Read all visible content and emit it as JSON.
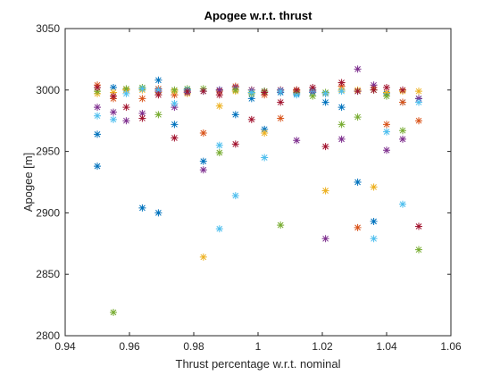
{
  "chart_data": {
    "type": "scatter",
    "title": "Apogee w.r.t. thrust",
    "xlabel": "Thrust percentage w.r.t. nominal",
    "ylabel": "Apogee [m]",
    "xlim": [
      0.94,
      1.06
    ],
    "ylim": [
      2800,
      3050
    ],
    "xticks": [
      "0.94",
      "0.96",
      "0.98",
      "1",
      "1.02",
      "1.04",
      "1.06"
    ],
    "yticks": [
      "2800",
      "2850",
      "2900",
      "2950",
      "3000",
      "3050"
    ],
    "grid": false,
    "box": true,
    "marker": "asterisk",
    "series": [
      {
        "color": "#0072BD",
        "points": [
          [
            0.95,
            2964
          ],
          [
            0.95,
            2938
          ],
          [
            0.955,
            3002
          ],
          [
            0.964,
            2904
          ],
          [
            0.969,
            3008
          ],
          [
            0.969,
            2900
          ],
          [
            0.974,
            2972
          ],
          [
            0.978,
            3000
          ],
          [
            0.983,
            2942
          ],
          [
            0.988,
            3000
          ],
          [
            0.993,
            2980
          ],
          [
            0.998,
            2993
          ],
          [
            1.002,
            2968
          ],
          [
            1.007,
            2998
          ],
          [
            1.012,
            2997
          ],
          [
            1.017,
            2998
          ],
          [
            1.021,
            2990
          ],
          [
            1.026,
            2986
          ],
          [
            1.031,
            2925
          ],
          [
            1.036,
            2893
          ],
          [
            1.04,
            2997
          ],
          [
            1.045,
            2990
          ],
          [
            1.05,
            2993
          ]
        ]
      },
      {
        "color": "#D95319",
        "points": [
          [
            0.95,
            3004
          ],
          [
            0.955,
            2993
          ],
          [
            0.959,
            3000
          ],
          [
            0.964,
            2993
          ],
          [
            0.969,
            3001
          ],
          [
            0.974,
            2996
          ],
          [
            0.978,
            2998
          ],
          [
            0.983,
            2965
          ],
          [
            0.988,
            2999
          ],
          [
            0.993,
            3003
          ],
          [
            0.998,
            2998
          ],
          [
            1.002,
            2996
          ],
          [
            1.007,
            2977
          ],
          [
            1.012,
            2999
          ],
          [
            1.017,
            3000
          ],
          [
            1.021,
            2997
          ],
          [
            1.026,
            3003
          ],
          [
            1.031,
            2888
          ],
          [
            1.036,
            3002
          ],
          [
            1.04,
            2972
          ],
          [
            1.045,
            2990
          ],
          [
            1.05,
            2975
          ]
        ]
      },
      {
        "color": "#EDB120",
        "points": [
          [
            0.95,
            2997
          ],
          [
            0.955,
            2998
          ],
          [
            0.959,
            3000
          ],
          [
            0.964,
            3000
          ],
          [
            0.969,
            2998
          ],
          [
            0.974,
            2999
          ],
          [
            0.978,
            2997
          ],
          [
            0.983,
            2864
          ],
          [
            0.988,
            2987
          ],
          [
            0.993,
            2999
          ],
          [
            0.998,
            3000
          ],
          [
            1.002,
            2965
          ],
          [
            1.007,
            3000
          ],
          [
            1.012,
            3000
          ],
          [
            1.017,
            3000
          ],
          [
            1.021,
            2918
          ],
          [
            1.026,
            3000
          ],
          [
            1.031,
            3000
          ],
          [
            1.036,
            2921
          ],
          [
            1.04,
            2998
          ],
          [
            1.045,
            2999
          ],
          [
            1.05,
            2999
          ]
        ]
      },
      {
        "color": "#7E2F8E",
        "points": [
          [
            0.95,
            2986
          ],
          [
            0.955,
            2982
          ],
          [
            0.959,
            2975
          ],
          [
            0.964,
            2981
          ],
          [
            0.969,
            2999
          ],
          [
            0.974,
            2986
          ],
          [
            0.978,
            2998
          ],
          [
            0.983,
            2935
          ],
          [
            0.988,
            3000
          ],
          [
            0.993,
            3002
          ],
          [
            0.998,
            3000
          ],
          [
            1.002,
            2999
          ],
          [
            1.007,
            3000
          ],
          [
            1.012,
            2959
          ],
          [
            1.017,
            2999
          ],
          [
            1.021,
            2879
          ],
          [
            1.026,
            2960
          ],
          [
            1.031,
            3017
          ],
          [
            1.036,
            3004
          ],
          [
            1.04,
            2951
          ],
          [
            1.045,
            2960
          ],
          [
            1.05,
            2993
          ]
        ]
      },
      {
        "color": "#77AC30",
        "points": [
          [
            0.95,
            2999
          ],
          [
            0.955,
            2819
          ],
          [
            0.959,
            3001
          ],
          [
            0.964,
            3002
          ],
          [
            0.969,
            2980
          ],
          [
            0.974,
            3000
          ],
          [
            0.978,
            3001
          ],
          [
            0.983,
            3001
          ],
          [
            0.988,
            2949
          ],
          [
            0.993,
            3000
          ],
          [
            0.998,
            2997
          ],
          [
            1.002,
            2999
          ],
          [
            1.007,
            2890
          ],
          [
            1.012,
            2998
          ],
          [
            1.017,
            2995
          ],
          [
            1.021,
            2998
          ],
          [
            1.026,
            2972
          ],
          [
            1.031,
            2978
          ],
          [
            1.036,
            3000
          ],
          [
            1.04,
            2995
          ],
          [
            1.045,
            2967
          ],
          [
            1.05,
            2870
          ]
        ]
      },
      {
        "color": "#4DBEEE",
        "points": [
          [
            0.95,
            2979
          ],
          [
            0.955,
            2976
          ],
          [
            0.959,
            2997
          ],
          [
            0.964,
            3001
          ],
          [
            0.969,
            3000
          ],
          [
            0.974,
            2989
          ],
          [
            0.978,
            3000
          ],
          [
            0.983,
            2999
          ],
          [
            0.988,
            2955
          ],
          [
            0.988,
            2887
          ],
          [
            0.993,
            2914
          ],
          [
            0.998,
            2998
          ],
          [
            1.002,
            2945
          ],
          [
            1.007,
            2999
          ],
          [
            1.012,
            2996
          ],
          [
            1.017,
            3000
          ],
          [
            1.021,
            2997
          ],
          [
            1.026,
            2999
          ],
          [
            1.031,
            2999
          ],
          [
            1.036,
            2879
          ],
          [
            1.04,
            2966
          ],
          [
            1.045,
            2907
          ],
          [
            1.05,
            2990
          ]
        ]
      },
      {
        "color": "#A2142F",
        "points": [
          [
            0.95,
            3002
          ],
          [
            0.955,
            2995
          ],
          [
            0.959,
            2986
          ],
          [
            0.964,
            2977
          ],
          [
            0.969,
            2996
          ],
          [
            0.974,
            2961
          ],
          [
            0.978,
            2999
          ],
          [
            0.983,
            2999
          ],
          [
            0.988,
            2996
          ],
          [
            0.993,
            2956
          ],
          [
            0.998,
            2976
          ],
          [
            1.002,
            2998
          ],
          [
            1.007,
            2990
          ],
          [
            1.012,
            3000
          ],
          [
            1.017,
            3002
          ],
          [
            1.021,
            2954
          ],
          [
            1.026,
            3006
          ],
          [
            1.031,
            2999
          ],
          [
            1.036,
            3000
          ],
          [
            1.04,
            3002
          ],
          [
            1.045,
            3000
          ],
          [
            1.05,
            2889
          ]
        ]
      }
    ]
  }
}
